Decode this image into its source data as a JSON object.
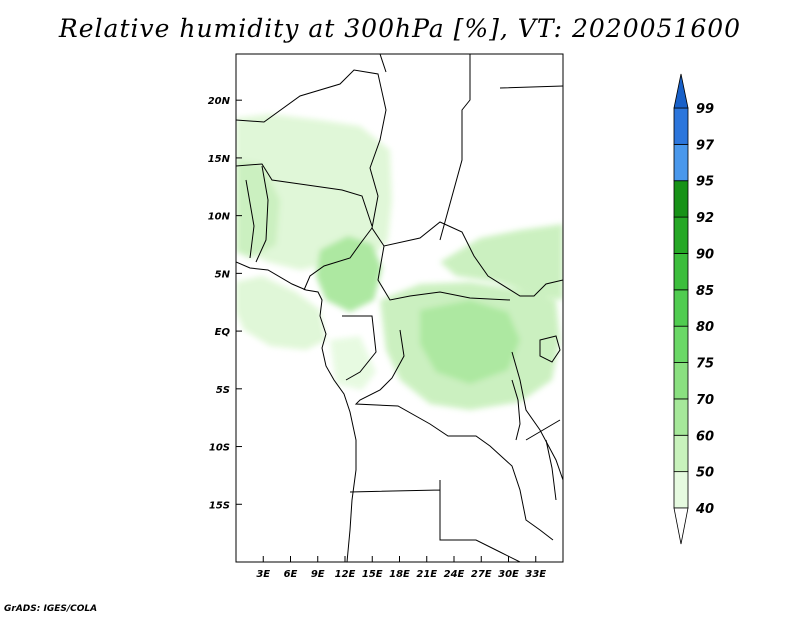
{
  "title": "Relative humidity at 300hPa [%], VT: 2020051600",
  "credit": "GrADS: IGES/COLA",
  "map": {
    "lon_range": [
      0,
      36
    ],
    "lat_range": [
      -20,
      24
    ],
    "lat_ticks": [
      {
        "value": 20,
        "label": "20N"
      },
      {
        "value": 15,
        "label": "15N"
      },
      {
        "value": 10,
        "label": "10N"
      },
      {
        "value": 5,
        "label": "5N"
      },
      {
        "value": 0,
        "label": "EQ"
      },
      {
        "value": -5,
        "label": "5S"
      },
      {
        "value": -10,
        "label": "10S"
      },
      {
        "value": -15,
        "label": "15S"
      }
    ],
    "lon_ticks": [
      {
        "value": 3,
        "label": "3E"
      },
      {
        "value": 6,
        "label": "6E"
      },
      {
        "value": 9,
        "label": "9E"
      },
      {
        "value": 12,
        "label": "12E"
      },
      {
        "value": 15,
        "label": "15E"
      },
      {
        "value": 18,
        "label": "18E"
      },
      {
        "value": 21,
        "label": "21E"
      },
      {
        "value": 24,
        "label": "24E"
      },
      {
        "value": 27,
        "label": "27E"
      },
      {
        "value": 30,
        "label": "30E"
      },
      {
        "value": 33,
        "label": "33E"
      }
    ]
  },
  "colorbar": {
    "levels": [
      "40",
      "50",
      "60",
      "70",
      "75",
      "80",
      "85",
      "90",
      "92",
      "95",
      "97",
      "99"
    ],
    "colors": [
      "#e6fae0",
      "#c8f2bc",
      "#a6e89a",
      "#8ae080",
      "#6ad866",
      "#50cc50",
      "#3cbe3c",
      "#26a826",
      "#179217",
      "#4a98ec",
      "#2c76dc",
      "#1458c8"
    ],
    "tail_colors": {
      "low": "#ffffff",
      "high": "#1860c8"
    }
  }
}
